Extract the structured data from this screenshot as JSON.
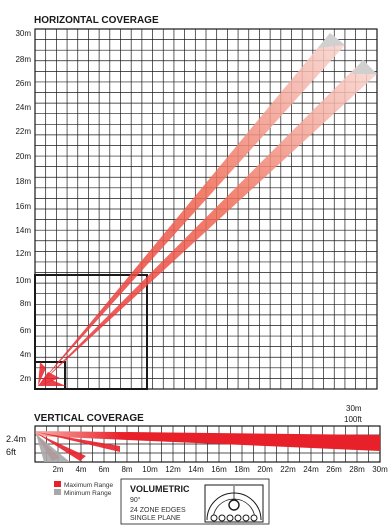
{
  "horizontal": {
    "title": "HORIZONTAL COVERAGE",
    "y_ticks": [
      "2m",
      "4m",
      "6m",
      "8m",
      "10m",
      "12m",
      "14m",
      "16m",
      "18m",
      "20m",
      "22m",
      "24m",
      "26m",
      "28m",
      "30m"
    ],
    "grid": true
  },
  "vertical": {
    "title": "VERTICAL COVERAGE",
    "height_label": "2.4m",
    "height_label_ft": "6ft",
    "range_label_m": "30m",
    "range_label_ft": "100ft",
    "x_ticks": [
      "2m",
      "4m",
      "6m",
      "8m",
      "10m",
      "12m",
      "14m",
      "16m",
      "18m",
      "20m",
      "22m",
      "24m",
      "26m",
      "28m",
      "30m"
    ]
  },
  "legend": {
    "max_label": "Maximum Range",
    "min_label": "Minimum Range",
    "max_color": "#e8202a",
    "min_color": "#a8a8a8"
  },
  "lens": {
    "title": "VOLUMETRIC",
    "angle": "90°",
    "line1": "24 ZONE EDGES",
    "line2": "SINGLE PLANE"
  }
}
